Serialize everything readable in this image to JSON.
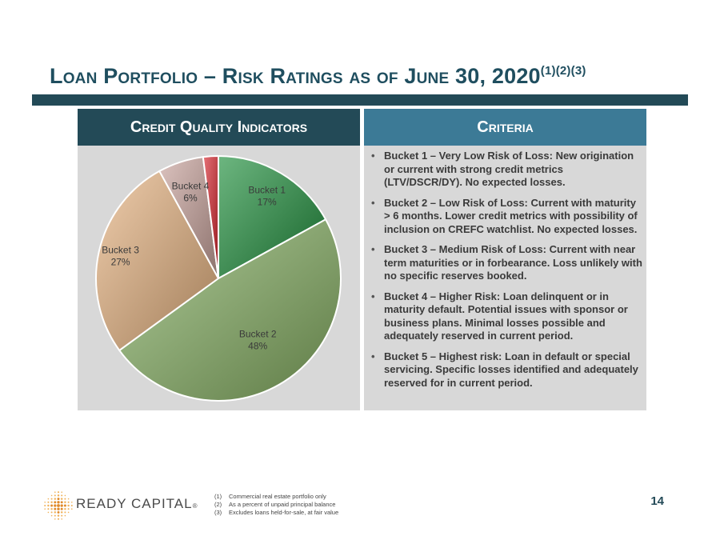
{
  "title": {
    "main": "Loan Portfolio – Risk Ratings as of June 30, 2020",
    "superscript": "(1)(2)(3)"
  },
  "panels": {
    "left_header": "Credit Quality Indicators",
    "right_header": "Criteria"
  },
  "chart_data": {
    "type": "pie",
    "categories": [
      "Bucket 1",
      "Bucket 2",
      "Bucket 3",
      "Bucket 4",
      "Bucket 5"
    ],
    "values": [
      17,
      48,
      27,
      6,
      2
    ],
    "value_labels": [
      "17%",
      "48%",
      "27%",
      "6%",
      "2%"
    ],
    "unit": "%",
    "colors": [
      "#1f8f3c",
      "#86b063",
      "#e6b27f",
      "#c9a39c",
      "#d9242c"
    ],
    "start_angle_deg": 0,
    "direction": "clockwise"
  },
  "criteria": [
    "Bucket 1 – Very Low Risk of Loss: New origination or current with strong credit metrics (LTV/DSCR/DY). No expected losses.",
    "Bucket 2 – Low Risk of Loss: Current with maturity > 6 months. Lower credit metrics with possibility of inclusion on CREFC watchlist. No expected losses.",
    "Bucket 3 – Medium Risk of Loss: Current with near term maturities or in forbearance. Loss unlikely with no specific reserves booked.",
    "Bucket 4 – Higher Risk: Loan delinquent or in maturity default. Potential issues with sponsor or business plans. Minimal losses possible and adequately reserved in current period.",
    "Bucket 5 – Highest risk: Loan in default or special servicing. Specific losses identified and adequately reserved for in current period."
  ],
  "footer": {
    "logo_text": "READY CAPITAL",
    "logo_reg": "®",
    "logo_icon": "dot-grid-logo-icon",
    "footnotes": [
      {
        "num": "(1)",
        "text": "Commercial real estate portfolio only"
      },
      {
        "num": "(2)",
        "text": "As a percent of unpaid principal balance"
      },
      {
        "num": "(3)",
        "text": "Excludes loans held-for-sale, at fair value"
      }
    ],
    "page_number": "14"
  }
}
